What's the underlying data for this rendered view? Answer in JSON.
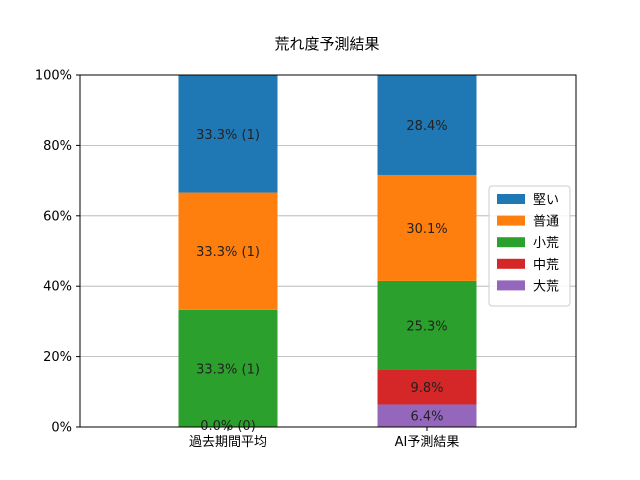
{
  "chart_data": {
    "type": "bar",
    "stacked": true,
    "title": "荒れ度予測結果",
    "categories": [
      "過去期間平均",
      "AI予測結果"
    ],
    "ylim": [
      0,
      100
    ],
    "yticks": [
      "0%",
      "20%",
      "40%",
      "60%",
      "80%",
      "100%"
    ],
    "grid": "horizontal",
    "legend_position": "right",
    "series": [
      {
        "name": "大荒",
        "color": "#9467bd",
        "values": [
          0.0,
          6.4
        ],
        "labels": [
          "",
          "6.4%"
        ]
      },
      {
        "name": "中荒",
        "color": "#d62728",
        "values": [
          0.0,
          9.8
        ],
        "labels": [
          "",
          "9.8%"
        ]
      },
      {
        "name": "小荒",
        "color": "#2ca02c",
        "values": [
          33.3,
          25.3
        ],
        "labels": [
          "33.3% (1)",
          "25.3%"
        ]
      },
      {
        "name": "普通",
        "color": "#ff7f0e",
        "values": [
          33.3,
          30.1
        ],
        "labels": [
          "33.3% (1)",
          "30.1%"
        ]
      },
      {
        "name": "堅い",
        "color": "#1f77b4",
        "values": [
          33.3,
          28.4
        ],
        "labels": [
          "33.3% (1)",
          "28.4%"
        ]
      }
    ],
    "extra_labels": [
      {
        "category_index": 0,
        "text": "0.0% (0)"
      }
    ],
    "legend_order": [
      "堅い",
      "普通",
      "小荒",
      "中荒",
      "大荒"
    ]
  }
}
